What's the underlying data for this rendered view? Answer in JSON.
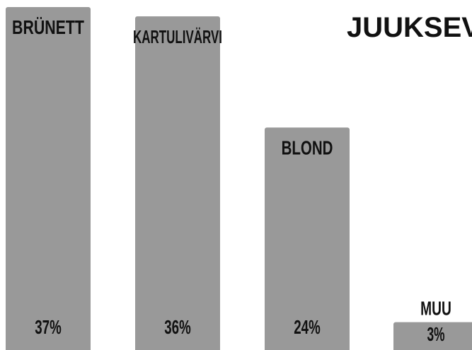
{
  "chart_data": {
    "type": "bar",
    "title": "JUUKSEVÄRV",
    "categories": [
      "BRÜNETT",
      "KARTULIVÄRVI",
      "BLOND",
      "MUU"
    ],
    "values": [
      37,
      36,
      24,
      3
    ],
    "value_labels": [
      "37%",
      "36%",
      "24%",
      "3%"
    ],
    "unit": "%",
    "ylim": [
      0,
      37
    ],
    "xlabel": "",
    "ylabel": "",
    "grid": false,
    "legend": "none",
    "bar_color": "#999999",
    "text_color": "#111111"
  }
}
